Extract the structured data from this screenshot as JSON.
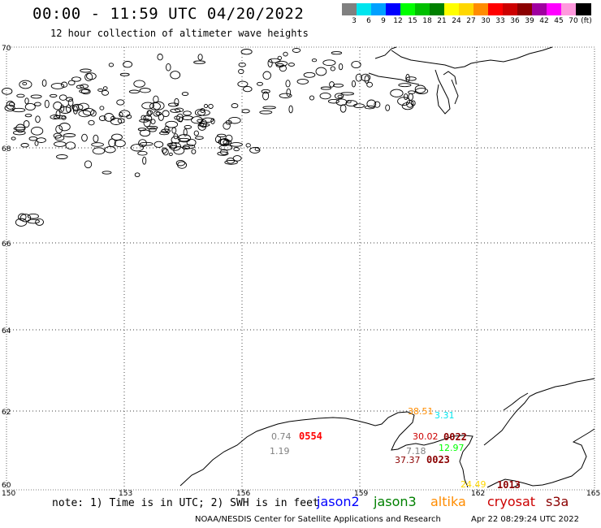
{
  "header": {
    "title": "00:00 - 11:59 UTC 04/20/2022",
    "subtitle": "12 hour collection of altimeter wave heights"
  },
  "legend": {
    "unit": "(ft)",
    "bins": [
      {
        "label": "3",
        "color": "#808080"
      },
      {
        "label": "6",
        "color": "#00e5ee"
      },
      {
        "label": "9",
        "color": "#00a0ff"
      },
      {
        "label": "12",
        "color": "#0000ff"
      },
      {
        "label": "15",
        "color": "#00ff00"
      },
      {
        "label": "18",
        "color": "#00c000"
      },
      {
        "label": "21",
        "color": "#008000"
      },
      {
        "label": "24",
        "color": "#ffff00"
      },
      {
        "label": "27",
        "color": "#ffd700"
      },
      {
        "label": "30",
        "color": "#ff8c00"
      },
      {
        "label": "33",
        "color": "#ff0000"
      },
      {
        "label": "36",
        "color": "#cc0000"
      },
      {
        "label": "39",
        "color": "#8b0000"
      },
      {
        "label": "42",
        "color": "#a000a0"
      },
      {
        "label": "45",
        "color": "#ff00ff"
      },
      {
        "label": "70",
        "color": "#ff99dd"
      },
      {
        "label": "",
        "color": "#000000"
      }
    ]
  },
  "axes": {
    "lat_labels": [
      "70",
      "68",
      "66",
      "64",
      "62",
      "60"
    ],
    "lon_labels": [
      "150",
      "153",
      "156",
      "159",
      "162",
      "165"
    ]
  },
  "observations": [
    {
      "value": "0.74",
      "color": "#808080"
    },
    {
      "value": "1.19",
      "color": "#808080"
    },
    {
      "value": "38.51",
      "color": "#ff8c00"
    },
    {
      "value": "3.31",
      "color": "#00e5ee"
    },
    {
      "value": "30.02",
      "color": "#cc0000"
    },
    {
      "value": "7.18",
      "color": "#808080"
    },
    {
      "value": "12.97",
      "color": "#00ff00"
    },
    {
      "value": "37.37",
      "color": "#8b0000"
    },
    {
      "value": "24.49",
      "color": "#ffd700"
    }
  ],
  "pass_times": [
    {
      "time": "0554",
      "color": "#ff0000"
    },
    {
      "time": "0022",
      "color": "#8b0000"
    },
    {
      "time": "0023",
      "color": "#8b0000"
    },
    {
      "time": "1013",
      "color": "#8b0000"
    }
  ],
  "footer": {
    "note": "note: 1) Time is in UTC; 2) SWH is in feet",
    "satellites": [
      {
        "name": "jason2",
        "color": "#0000ff"
      },
      {
        "name": "jason3",
        "color": "#008000"
      },
      {
        "name": "altika",
        "color": "#ff8c00"
      },
      {
        "name": "cryosat",
        "color": "#cc0000"
      },
      {
        "name": "s3a",
        "color": "#8b0000"
      }
    ],
    "credit": "NOAA/NESDIS Center for Satellite Applications and Research",
    "generated": "Apr 22 08:29:24 UTC 2022"
  }
}
